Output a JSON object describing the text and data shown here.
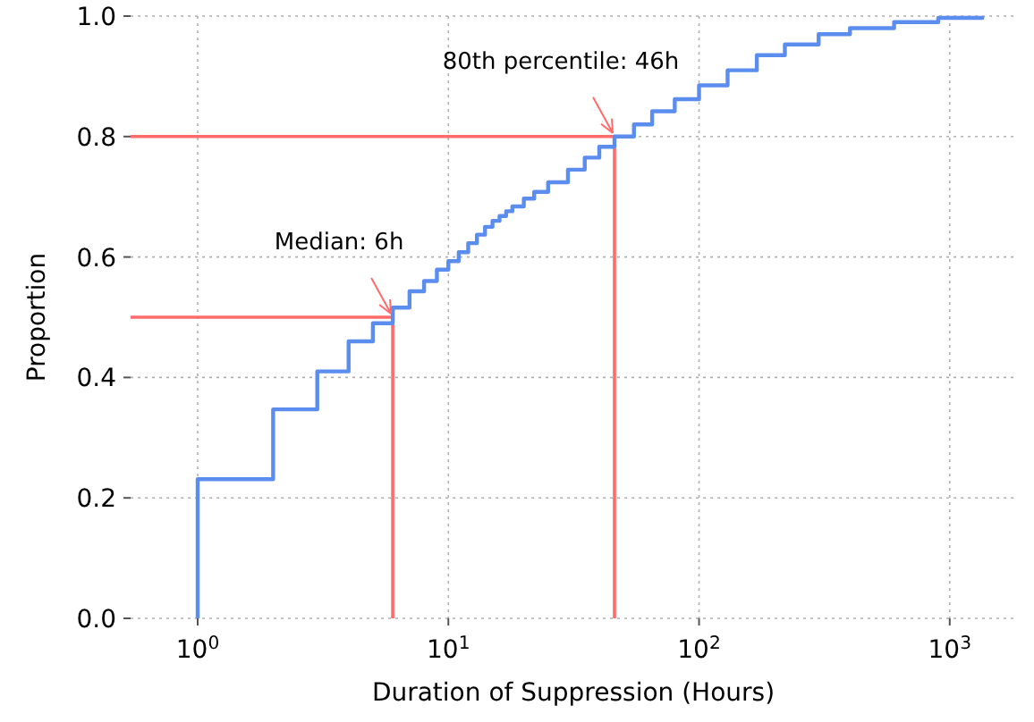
{
  "chart_data": {
    "type": "step",
    "xlabel": "Duration of Suppression (Hours)",
    "ylabel": "Proportion",
    "log": "x",
    "grid": true,
    "xlim": [
      0.54,
      1840
    ],
    "ylim": [
      0,
      1
    ],
    "xticks": [
      {
        "value": 1,
        "label": "10$^{0}$"
      },
      {
        "value": 10,
        "label": "10$^{1}$"
      },
      {
        "value": 100,
        "label": "10$^{2}$"
      },
      {
        "value": 1000,
        "label": "10$^{3}$"
      }
    ],
    "yticks": [
      {
        "value": 0,
        "label": "0.0"
      },
      0.2,
      0.4,
      0.6,
      0.8,
      {
        "value": 1,
        "label": "1.0"
      }
    ],
    "series": [
      {
        "color": "#5b8def",
        "x": [
          1,
          1,
          2,
          3,
          4,
          5,
          6,
          7,
          8,
          9,
          10,
          11,
          12,
          13,
          14,
          15,
          16,
          17,
          18,
          20,
          22,
          25,
          30,
          35,
          40,
          46,
          55,
          65,
          80,
          100,
          130,
          170,
          220,
          300,
          400,
          600,
          900,
          1350
        ],
        "values": [
          0,
          0.231,
          0.347,
          0.41,
          0.46,
          0.49,
          0.516,
          0.543,
          0.56,
          0.579,
          0.593,
          0.608,
          0.623,
          0.637,
          0.65,
          0.66,
          0.668,
          0.676,
          0.684,
          0.697,
          0.708,
          0.724,
          0.745,
          0.765,
          0.783,
          0.8,
          0.82,
          0.842,
          0.862,
          0.885,
          0.91,
          0.935,
          0.953,
          0.97,
          0.98,
          0.99,
          0.997,
          1.0
        ]
      }
    ],
    "ref_lines": [
      {
        "axis": "x",
        "value": 6,
        "color": "#ff6b6b"
      },
      {
        "axis": "y",
        "value": 0.5,
        "color": "#ff6b6b"
      },
      {
        "axis": "x",
        "value": 46,
        "color": "#ff6b6b"
      },
      {
        "axis": "y",
        "value": 0.8,
        "color": "#ff6b6b"
      }
    ],
    "annotations": [
      {
        "text": "Median: 6h",
        "x": 6,
        "y": 0.5
      },
      {
        "text": "80th percentile: 46h",
        "x": 46,
        "y": 0.8
      }
    ]
  }
}
